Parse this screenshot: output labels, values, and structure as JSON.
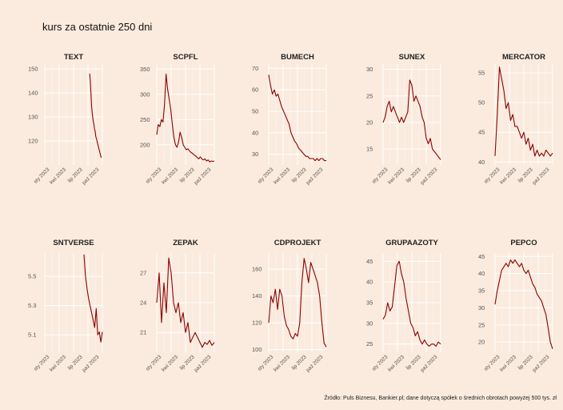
{
  "header": {
    "title": "kurs za ostatnie 250 dni"
  },
  "footer": {
    "source": "Źródło: Puls Biznesu, Bankier.pl; dane dotyczą spółek o średnich obrotach powyżej 500 tys. zł"
  },
  "colors": {
    "background": "#faebde",
    "line": "#8b0000",
    "grid": "#ffffff"
  },
  "chart_data": [
    {
      "type": "line",
      "title": "TEXT",
      "x_ticks": [
        "sty 2023",
        "kwi 2023",
        "lip 2023",
        "paź 2023"
      ],
      "y_ticks": [
        120,
        130,
        140,
        150
      ],
      "ylim": [
        110,
        152
      ],
      "series": [
        {
          "x_start": 0.78,
          "x_end": 0.98,
          "values": [
            148,
            145,
            140,
            135,
            132,
            130,
            128,
            127,
            125,
            124,
            122,
            121,
            120,
            119,
            118,
            117,
            116,
            115,
            114,
            113
          ]
        }
      ]
    },
    {
      "type": "line",
      "title": "SCPFL",
      "x_ticks": [
        "sty 2023",
        "kwi 2023",
        "lip 2023",
        "paź 2023"
      ],
      "y_ticks": [
        200,
        250,
        300,
        350
      ],
      "ylim": [
        160,
        360
      ],
      "series": [
        {
          "x_start": 0.0,
          "x_end": 1.0,
          "values": [
            220,
            240,
            236,
            250,
            245,
            280,
            340,
            310,
            290,
            270,
            240,
            215,
            200,
            195,
            205,
            225,
            215,
            200,
            195,
            190,
            192,
            188,
            185,
            183,
            180,
            178,
            175,
            172,
            176,
            172,
            170,
            172,
            168,
            170,
            166,
            168,
            167,
            168
          ]
        }
      ]
    },
    {
      "type": "line",
      "title": "BUMECH",
      "x_ticks": [
        "sty 2023",
        "kwi 2023",
        "lip 2023",
        "paź 2023"
      ],
      "y_ticks": [
        30,
        40,
        50,
        60,
        70
      ],
      "ylim": [
        25,
        72
      ],
      "series": [
        {
          "x_start": 0.0,
          "x_end": 1.0,
          "values": [
            67,
            62,
            58,
            60,
            57,
            58,
            55,
            52,
            50,
            48,
            46,
            44,
            40,
            38,
            36,
            35,
            33,
            32,
            31,
            30,
            29,
            29,
            28,
            28,
            28,
            27,
            28,
            27,
            28,
            28,
            27,
            27
          ]
        }
      ]
    },
    {
      "type": "line",
      "title": "SUNEX",
      "x_ticks": [
        "sty 2023",
        "kwi 2023",
        "lip 2023",
        "paź 2023"
      ],
      "y_ticks": [
        15,
        20,
        25,
        30
      ],
      "ylim": [
        12,
        31
      ],
      "series": [
        {
          "x_start": 0.0,
          "x_end": 1.0,
          "values": [
            20,
            21,
            23,
            24,
            22,
            23,
            22,
            21,
            20,
            21,
            20,
            21,
            22,
            28,
            27,
            24,
            25,
            24,
            23,
            21,
            20,
            17,
            16,
            17,
            15,
            14.5,
            14,
            13.5,
            13
          ]
        }
      ]
    },
    {
      "type": "line",
      "title": "MERCATOR",
      "x_ticks": [
        "sty 2023",
        "kwi 2023",
        "lip 2023",
        "paź 2023"
      ],
      "y_ticks": [
        40,
        45,
        50,
        55
      ],
      "ylim": [
        39.5,
        56.5
      ],
      "series": [
        {
          "x_start": 0.0,
          "x_end": 1.0,
          "values": [
            41,
            48,
            56,
            54,
            52,
            49,
            50,
            47,
            48,
            46,
            46,
            45,
            44,
            45,
            43,
            44,
            42,
            43,
            41,
            42,
            41,
            41.5,
            41,
            42,
            41.5,
            41,
            41.5
          ]
        }
      ]
    },
    {
      "type": "line",
      "title": "SNTVERSE",
      "x_ticks": [
        "sty 2023",
        "kwi 2023",
        "lip 2023",
        "paź 2023"
      ],
      "y_ticks": [
        5.1,
        5.3,
        5.5
      ],
      "ylim": [
        4.98,
        5.66
      ],
      "series": [
        {
          "x_start": 0.68,
          "x_end": 1.0,
          "values": [
            5.65,
            5.5,
            5.42,
            5.35,
            5.3,
            5.25,
            5.2,
            5.15,
            5.28,
            5.1,
            5.12,
            5.05,
            5.12
          ]
        }
      ]
    },
    {
      "type": "line",
      "title": "ZEPAK",
      "x_ticks": [
        "sty 2023",
        "kwi 2023",
        "lip 2023",
        "paź 2023"
      ],
      "y_ticks": [
        21,
        24,
        27
      ],
      "ylim": [
        19,
        29
      ],
      "series": [
        {
          "x_start": 0.0,
          "x_end": 1.0,
          "values": [
            24,
            27,
            22,
            26,
            23,
            28.5,
            27,
            24,
            23,
            24,
            22,
            23,
            21,
            22,
            20,
            20.5,
            21,
            20.5,
            20,
            19.5,
            20,
            19.8,
            20.2,
            19.7,
            20
          ]
        }
      ]
    },
    {
      "type": "line",
      "title": "CDPROJEKT",
      "x_ticks": [
        "sty 2023",
        "kwi 2023",
        "lip 2023",
        "paź 2023"
      ],
      "y_ticks": [
        100,
        120,
        140,
        160
      ],
      "ylim": [
        98,
        172
      ],
      "series": [
        {
          "x_start": 0.0,
          "x_end": 1.0,
          "values": [
            120,
            140,
            135,
            145,
            130,
            145,
            140,
            125,
            118,
            115,
            110,
            108,
            112,
            110,
            120,
            150,
            168,
            160,
            150,
            165,
            160,
            155,
            150,
            140,
            120,
            105,
            102
          ]
        }
      ]
    },
    {
      "type": "line",
      "title": "GRUPAAZOTY",
      "x_ticks": [
        "sty 2023",
        "kwi 2023",
        "lip 2023",
        "paź 2023"
      ],
      "y_ticks": [
        25,
        30,
        35,
        40,
        45
      ],
      "ylim": [
        23,
        47
      ],
      "series": [
        {
          "x_start": 0.0,
          "x_end": 1.0,
          "values": [
            31,
            32,
            35,
            33,
            34,
            39,
            44,
            45,
            42,
            40,
            36,
            33,
            30,
            29,
            27,
            28,
            26,
            25,
            26,
            25,
            24.5,
            25,
            25,
            24.5,
            25.5,
            25
          ]
        }
      ]
    },
    {
      "type": "line",
      "title": "PEPCO",
      "x_ticks": [
        "sty 2023",
        "kwi 2023",
        "lip 2023",
        "paź 2023"
      ],
      "y_ticks": [
        20,
        25,
        30,
        35,
        40,
        45
      ],
      "ylim": [
        17,
        46
      ],
      "series": [
        {
          "x_start": 0.0,
          "x_end": 1.0,
          "values": [
            31,
            35,
            38,
            41,
            42,
            43,
            42,
            44,
            43,
            44,
            43,
            42,
            43,
            41,
            40,
            41,
            39,
            37,
            36,
            34,
            33,
            32,
            30,
            28,
            24,
            20,
            18
          ]
        }
      ]
    }
  ]
}
